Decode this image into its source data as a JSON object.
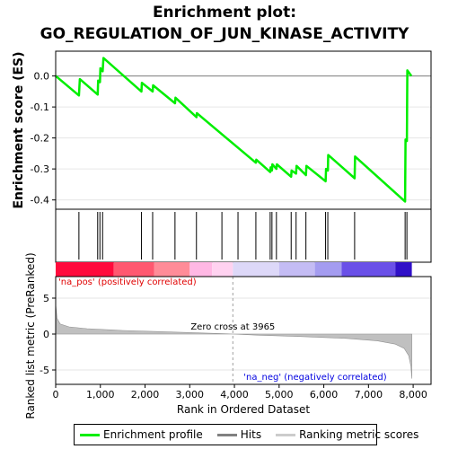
{
  "title_line1": "Enrichment plot:",
  "title_line2": "GO_REGULATION_OF_JUN_KINASE_ACTIVITY",
  "legend": [
    {
      "label": "Enrichment profile",
      "color": "#00ee00"
    },
    {
      "label": "Hits",
      "color": "#808080"
    },
    {
      "label": "Ranking metric scores",
      "color": "#cccccc"
    }
  ],
  "chart_data": {
    "type": "line",
    "top_panel": {
      "ylabel": "Enrichment score (ES)",
      "ylim": [
        -0.43,
        0.08
      ],
      "yticks": [
        0.0,
        -0.1,
        -0.2,
        -0.3,
        -0.4
      ],
      "ytick_labels": [
        "0.0",
        "-0.1",
        "-0.2",
        "-0.3",
        "-0.4"
      ],
      "series": [
        {
          "color": "#00ee00",
          "x": [
            0,
            520,
            540,
            940,
            950,
            990,
            1000,
            1050,
            1070,
            1920,
            1930,
            2170,
            2180,
            2670,
            2680,
            3150,
            3160,
            4480,
            4490,
            4800,
            4810,
            4840,
            4850,
            4940,
            4950,
            5270,
            5280,
            5380,
            5390,
            5600,
            5610,
            6040,
            6050,
            6090,
            6100,
            6690,
            6700,
            7820,
            7830,
            7860,
            7870,
            7960
          ],
          "y": [
            0.0,
            -0.063,
            -0.01,
            -0.06,
            -0.015,
            -0.02,
            0.025,
            0.015,
            0.058,
            -0.05,
            -0.022,
            -0.05,
            -0.03,
            -0.088,
            -0.07,
            -0.133,
            -0.12,
            -0.28,
            -0.27,
            -0.31,
            -0.295,
            -0.305,
            -0.285,
            -0.3,
            -0.285,
            -0.325,
            -0.305,
            -0.315,
            -0.29,
            -0.32,
            -0.29,
            -0.34,
            -0.3,
            -0.305,
            -0.255,
            -0.33,
            -0.26,
            -0.405,
            -0.205,
            -0.21,
            0.018,
            0.0
          ]
        }
      ]
    },
    "hits": [
      520,
      940,
      990,
      1050,
      1920,
      2170,
      2670,
      3150,
      3720,
      4080,
      4480,
      4800,
      4840,
      4940,
      5270,
      5380,
      5600,
      6040,
      6090,
      6690,
      7820,
      7860
    ],
    "bottom_panel": {
      "ylabel": "Ranked list metric (PreRanked)",
      "xlabel": "Rank in Ordered Dataset",
      "ylim": [
        -7,
        8
      ],
      "yticks": [
        5,
        0,
        -5
      ],
      "ytick_labels": [
        "5",
        "0",
        "-5"
      ],
      "xlim": [
        0,
        8400
      ],
      "xticks": [
        0,
        1000,
        2000,
        3000,
        4000,
        5000,
        6000,
        7000,
        8000
      ],
      "xtick_labels": [
        "0",
        "1,000",
        "2,000",
        "3,000",
        "4,000",
        "5,000",
        "6,000",
        "7,000",
        "8,000"
      ],
      "n_genes": 7970,
      "zero_cross": 3965,
      "metric_x": [
        0,
        30,
        100,
        300,
        700,
        1500,
        2500,
        3500,
        3965,
        4500,
        5500,
        6500,
        7200,
        7600,
        7800,
        7900,
        7950,
        7970
      ],
      "metric_y": [
        4.2,
        2.2,
        1.4,
        1.0,
        0.75,
        0.5,
        0.3,
        0.1,
        0.0,
        -0.15,
        -0.35,
        -0.6,
        -0.95,
        -1.4,
        -2.0,
        -3.0,
        -4.5,
        -6.2
      ],
      "zero_cross_label": "Zero cross at 3965",
      "pos_label": "'na_pos' (positively correlated)",
      "neg_label": "'na_neg' (negatively correlated)"
    },
    "color_bar": [
      {
        "from": 0,
        "to": 1300,
        "color": "#ff0a3c"
      },
      {
        "from": 1300,
        "to": 2200,
        "color": "#ff5870"
      },
      {
        "from": 2200,
        "to": 3000,
        "color": "#ff8c98"
      },
      {
        "from": 3000,
        "to": 3500,
        "color": "#ffb8e4"
      },
      {
        "from": 3500,
        "to": 3965,
        "color": "#ffd2f0"
      },
      {
        "from": 3965,
        "to": 5000,
        "color": "#ddd8f8"
      },
      {
        "from": 5000,
        "to": 5800,
        "color": "#c4bcf4"
      },
      {
        "from": 5800,
        "to": 6400,
        "color": "#a49cf0"
      },
      {
        "from": 6400,
        "to": 7600,
        "color": "#6a50e8"
      },
      {
        "from": 7600,
        "to": 7970,
        "color": "#3010c8"
      }
    ]
  }
}
